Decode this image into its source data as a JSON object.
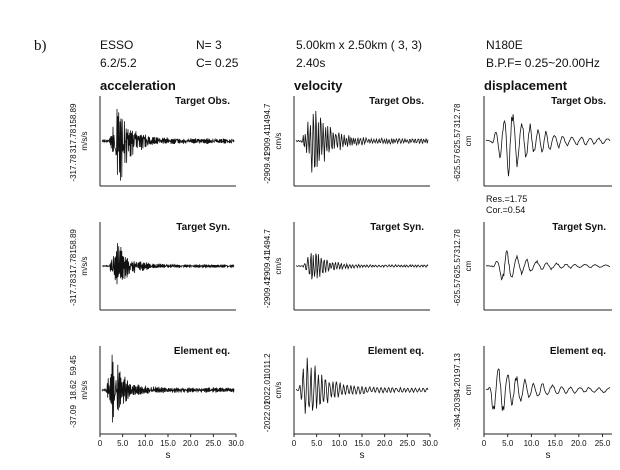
{
  "panel_label": "b)",
  "header": {
    "station": "ESSO",
    "magnitude": "6.2/5.2",
    "n_value": "N= 3",
    "c_value": "C= 0.25",
    "grid": "5.00km x 2.50km  ( 3, 3)",
    "rise_time": "2.40s",
    "component": "N180E",
    "band_pass": "B.P.F= 0.25~20.00Hz"
  },
  "fit_stats": {
    "res": "Res.=1.75",
    "cor": "Cor.=0.54"
  },
  "chart_data": [
    {
      "type": "line",
      "title": "acceleration",
      "xlabel": "s",
      "xlim": [
        0,
        30
      ],
      "xticks": [
        "0",
        "5.0",
        "10.0",
        "15.0",
        "20.0",
        "25.0",
        "30.0"
      ],
      "rows": [
        {
          "label": "Target Obs.",
          "ylabel": "m/s/s",
          "ymax": "158.89",
          "yzero": "317.78",
          "ymin": "-317.78",
          "yzero2": "158.89"
        },
        {
          "label": "Target Syn.",
          "ylabel": "m/s/s",
          "ymax": "158.89",
          "yzero": "317.78",
          "ymin": "-317.78",
          "yzero2": "158.89"
        },
        {
          "label": "Element eq.",
          "ylabel": "m/s/s",
          "ymax": "59.45",
          "yzero": "18.62",
          "ymin": "-37.09",
          "yzero2": "59.45"
        }
      ]
    },
    {
      "type": "line",
      "title": "velocity",
      "xlabel": "s",
      "xlim": [
        0,
        30
      ],
      "xticks": [
        "0",
        "5.0",
        "10.0",
        "15.0",
        "20.0",
        "25.0",
        "30.0"
      ],
      "rows": [
        {
          "label": "Target Obs.",
          "ylabel": "cm/s",
          "ymax": "1494.7",
          "yzero": "2909.41",
          "ymin": "-2909.41",
          "yzero2": "1494.7"
        },
        {
          "label": "Target Syn.",
          "ylabel": "cm/s",
          "ymax": "1494.7",
          "yzero": "2909.41",
          "ymin": "-2909.41",
          "yzero2": "1494.7"
        },
        {
          "label": "Element eq.",
          "ylabel": "cm/s",
          "ymax": "1011.2",
          "yzero": "2022.01",
          "ymin": "-2022.01",
          "yzero2": "1011.2"
        }
      ]
    },
    {
      "type": "line",
      "title": "displacement",
      "xlabel": "s",
      "xlim": [
        0,
        27
      ],
      "xticks": [
        "0",
        "5.0",
        "10.0",
        "15.0",
        "20.0",
        "25.0"
      ],
      "rows": [
        {
          "label": "Target Obs.",
          "ylabel": "cm",
          "ymax": "312.78",
          "yzero": "625.57",
          "ymin": "-625.57",
          "yzero2": "312.78"
        },
        {
          "label": "Target Syn.",
          "ylabel": "cm",
          "ymax": "312.78",
          "yzero": "625.57",
          "ymin": "-625.57",
          "yzero2": "312.78"
        },
        {
          "label": "Element eq.",
          "ylabel": "cm",
          "ymax": "197.13",
          "yzero": "394.20",
          "ymin": "-394.20",
          "yzero2": "197.13"
        }
      ]
    }
  ]
}
